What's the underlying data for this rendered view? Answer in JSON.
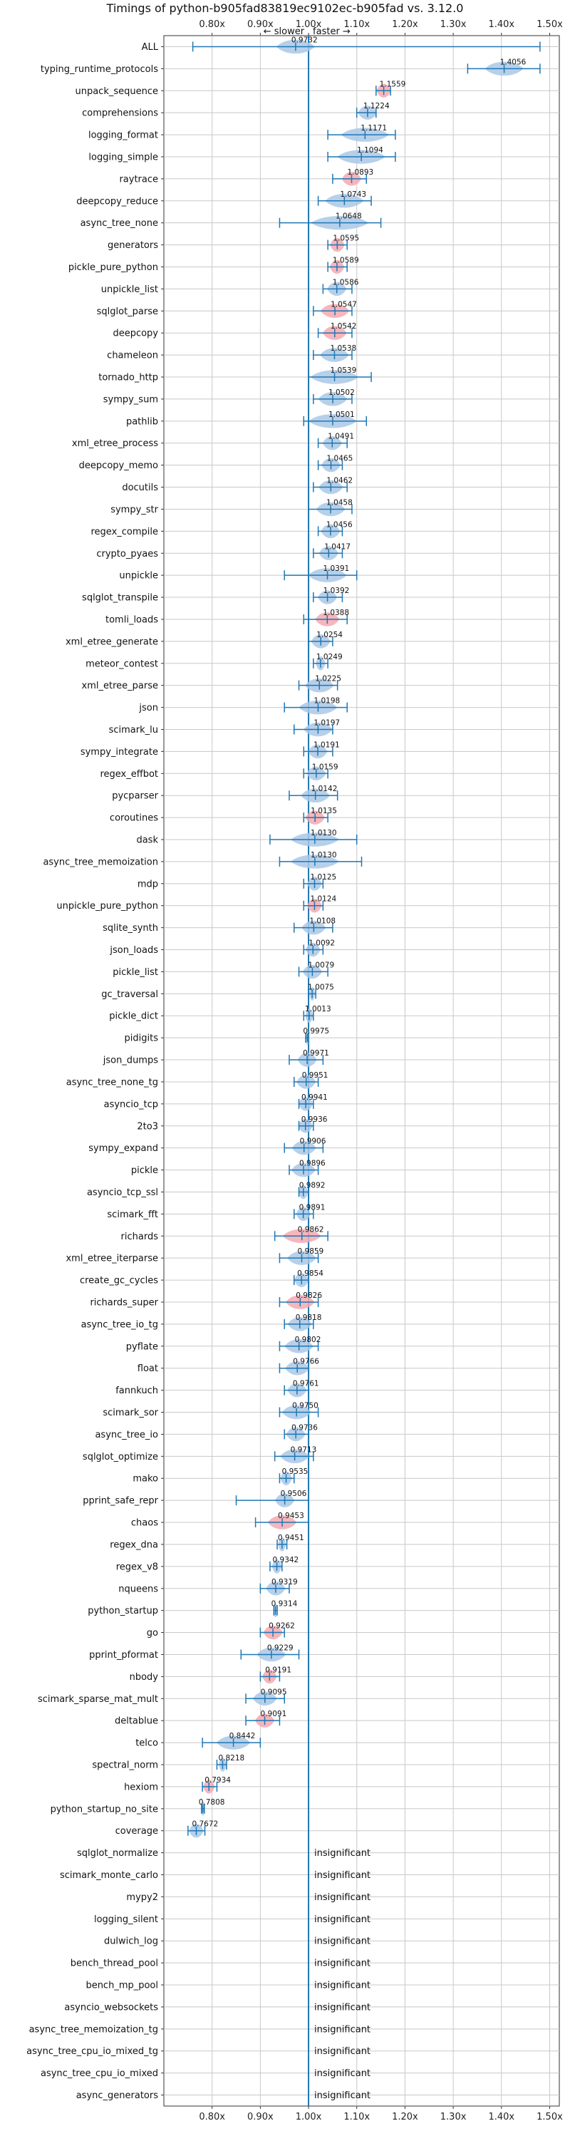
{
  "colors": {
    "faster": "#aac8e6",
    "slower": "#f4a9b0",
    "line": "#1f77b4",
    "grid": "#c8c8c8",
    "axis": "#333333"
  },
  "chart_data": {
    "type": "violin",
    "title": "Timings of python-b905fad83819ec9102ec-b905fad vs. 3.12.0",
    "direction_slower": "← slower",
    "direction_faster": "faster →",
    "xlim": [
      0.7,
      1.52
    ],
    "xticks": [
      0.8,
      0.9,
      1.0,
      1.1,
      1.2,
      1.3,
      1.4,
      1.5
    ],
    "xtick_labels": [
      "0.80x",
      "0.90x",
      "1.00x",
      "1.10x",
      "1.20x",
      "1.30x",
      "1.40x",
      "1.50x"
    ],
    "reference_line": 1.0,
    "grid": true,
    "insignificant_label": "insignificant",
    "benchmarks": [
      {
        "name": "ALL",
        "value": 0.9732,
        "lo": 0.76,
        "hi": 1.48,
        "spread": 0.04,
        "color": "faster",
        "show_value": true
      },
      {
        "name": "typing_runtime_protocols",
        "value": 1.4056,
        "lo": 1.33,
        "hi": 1.48,
        "spread": 0.04,
        "color": "faster"
      },
      {
        "name": "unpack_sequence",
        "value": 1.1559,
        "lo": 1.14,
        "hi": 1.17,
        "spread": 0.015,
        "color": "slower"
      },
      {
        "name": "comprehensions",
        "value": 1.1224,
        "lo": 1.1,
        "hi": 1.14,
        "spread": 0.02,
        "color": "faster"
      },
      {
        "name": "logging_format",
        "value": 1.1171,
        "lo": 1.04,
        "hi": 1.18,
        "spread": 0.05,
        "color": "faster"
      },
      {
        "name": "logging_simple",
        "value": 1.1094,
        "lo": 1.04,
        "hi": 1.18,
        "spread": 0.05,
        "color": "faster"
      },
      {
        "name": "raytrace",
        "value": 1.0893,
        "lo": 1.05,
        "hi": 1.12,
        "spread": 0.02,
        "color": "slower"
      },
      {
        "name": "deepcopy_reduce",
        "value": 1.0743,
        "lo": 1.02,
        "hi": 1.13,
        "spread": 0.04,
        "color": "faster"
      },
      {
        "name": "async_tree_none",
        "value": 1.0648,
        "lo": 0.94,
        "hi": 1.15,
        "spread": 0.06,
        "color": "faster"
      },
      {
        "name": "generators",
        "value": 1.0595,
        "lo": 1.04,
        "hi": 1.08,
        "spread": 0.015,
        "color": "slower"
      },
      {
        "name": "pickle_pure_python",
        "value": 1.0589,
        "lo": 1.04,
        "hi": 1.08,
        "spread": 0.015,
        "color": "slower"
      },
      {
        "name": "unpickle_list",
        "value": 1.0586,
        "lo": 1.03,
        "hi": 1.09,
        "spread": 0.02,
        "color": "faster"
      },
      {
        "name": "sqlglot_parse",
        "value": 1.0547,
        "lo": 1.01,
        "hi": 1.09,
        "spread": 0.03,
        "color": "slower"
      },
      {
        "name": "deepcopy",
        "value": 1.0542,
        "lo": 1.02,
        "hi": 1.09,
        "spread": 0.025,
        "color": "slower"
      },
      {
        "name": "chameleon",
        "value": 1.0538,
        "lo": 1.01,
        "hi": 1.09,
        "spread": 0.03,
        "color": "faster"
      },
      {
        "name": "tornado_http",
        "value": 1.0539,
        "lo": 1.0,
        "hi": 1.13,
        "spread": 0.05,
        "color": "faster"
      },
      {
        "name": "sympy_sum",
        "value": 1.0502,
        "lo": 1.01,
        "hi": 1.09,
        "spread": 0.03,
        "color": "faster"
      },
      {
        "name": "pathlib",
        "value": 1.0501,
        "lo": 0.99,
        "hi": 1.12,
        "spread": 0.05,
        "color": "faster"
      },
      {
        "name": "xml_etree_process",
        "value": 1.0491,
        "lo": 1.02,
        "hi": 1.08,
        "spread": 0.02,
        "color": "faster"
      },
      {
        "name": "deepcopy_memo",
        "value": 1.0465,
        "lo": 1.02,
        "hi": 1.07,
        "spread": 0.02,
        "color": "faster"
      },
      {
        "name": "docutils",
        "value": 1.0462,
        "lo": 1.01,
        "hi": 1.08,
        "spread": 0.025,
        "color": "faster"
      },
      {
        "name": "sympy_str",
        "value": 1.0458,
        "lo": 1.0,
        "hi": 1.09,
        "spread": 0.03,
        "color": "faster"
      },
      {
        "name": "regex_compile",
        "value": 1.0456,
        "lo": 1.02,
        "hi": 1.07,
        "spread": 0.02,
        "color": "faster"
      },
      {
        "name": "crypto_pyaes",
        "value": 1.0417,
        "lo": 1.01,
        "hi": 1.07,
        "spread": 0.02,
        "color": "faster"
      },
      {
        "name": "unpickle",
        "value": 1.0391,
        "lo": 0.95,
        "hi": 1.1,
        "spread": 0.04,
        "color": "faster"
      },
      {
        "name": "sqlglot_transpile",
        "value": 1.0392,
        "lo": 1.01,
        "hi": 1.07,
        "spread": 0.02,
        "color": "faster"
      },
      {
        "name": "tomli_loads",
        "value": 1.0388,
        "lo": 0.99,
        "hi": 1.08,
        "spread": 0.025,
        "color": "slower"
      },
      {
        "name": "xml_etree_generate",
        "value": 1.0254,
        "lo": 1.0,
        "hi": 1.05,
        "spread": 0.02,
        "color": "faster"
      },
      {
        "name": "meteor_contest",
        "value": 1.0249,
        "lo": 1.01,
        "hi": 1.04,
        "spread": 0.01,
        "color": "faster"
      },
      {
        "name": "xml_etree_parse",
        "value": 1.0225,
        "lo": 0.98,
        "hi": 1.06,
        "spread": 0.03,
        "color": "faster"
      },
      {
        "name": "json",
        "value": 1.0198,
        "lo": 0.95,
        "hi": 1.08,
        "spread": 0.04,
        "color": "faster"
      },
      {
        "name": "scimark_lu",
        "value": 1.0197,
        "lo": 0.97,
        "hi": 1.05,
        "spread": 0.03,
        "color": "faster"
      },
      {
        "name": "sympy_integrate",
        "value": 1.0191,
        "lo": 0.99,
        "hi": 1.05,
        "spread": 0.02,
        "color": "faster"
      },
      {
        "name": "regex_effbot",
        "value": 1.0159,
        "lo": 0.99,
        "hi": 1.04,
        "spread": 0.02,
        "color": "faster"
      },
      {
        "name": "pycparser",
        "value": 1.0142,
        "lo": 0.96,
        "hi": 1.06,
        "spread": 0.03,
        "color": "faster"
      },
      {
        "name": "coroutines",
        "value": 1.0135,
        "lo": 0.99,
        "hi": 1.04,
        "spread": 0.02,
        "color": "slower"
      },
      {
        "name": "dask",
        "value": 1.013,
        "lo": 0.92,
        "hi": 1.1,
        "spread": 0.05,
        "color": "faster"
      },
      {
        "name": "async_tree_memoization",
        "value": 1.013,
        "lo": 0.94,
        "hi": 1.11,
        "spread": 0.05,
        "color": "faster"
      },
      {
        "name": "mdp",
        "value": 1.0125,
        "lo": 0.99,
        "hi": 1.03,
        "spread": 0.015,
        "color": "faster"
      },
      {
        "name": "unpickle_pure_python",
        "value": 1.0124,
        "lo": 0.99,
        "hi": 1.03,
        "spread": 0.015,
        "color": "slower"
      },
      {
        "name": "sqlite_synth",
        "value": 1.0108,
        "lo": 0.97,
        "hi": 1.05,
        "spread": 0.025,
        "color": "faster"
      },
      {
        "name": "json_loads",
        "value": 1.0092,
        "lo": 0.99,
        "hi": 1.03,
        "spread": 0.015,
        "color": "faster"
      },
      {
        "name": "pickle_list",
        "value": 1.0079,
        "lo": 0.98,
        "hi": 1.04,
        "spread": 0.02,
        "color": "faster"
      },
      {
        "name": "gc_traversal",
        "value": 1.0075,
        "lo": 1.0,
        "hi": 1.015,
        "spread": 0.006,
        "color": "faster"
      },
      {
        "name": "pickle_dict",
        "value": 1.0013,
        "lo": 0.99,
        "hi": 1.01,
        "spread": 0.008,
        "color": "faster"
      },
      {
        "name": "pidigits",
        "value": 0.9975,
        "lo": 0.994,
        "hi": 1.0,
        "spread": 0.003,
        "color": "faster"
      },
      {
        "name": "json_dumps",
        "value": 0.9971,
        "lo": 0.96,
        "hi": 1.03,
        "spread": 0.02,
        "color": "faster"
      },
      {
        "name": "async_tree_none_tg",
        "value": 0.9951,
        "lo": 0.97,
        "hi": 1.02,
        "spread": 0.02,
        "color": "faster"
      },
      {
        "name": "asyncio_tcp",
        "value": 0.9941,
        "lo": 0.98,
        "hi": 1.01,
        "spread": 0.015,
        "color": "faster"
      },
      {
        "name": "2to3",
        "value": 0.9936,
        "lo": 0.98,
        "hi": 1.01,
        "spread": 0.015,
        "color": "faster"
      },
      {
        "name": "sympy_expand",
        "value": 0.9906,
        "lo": 0.95,
        "hi": 1.03,
        "spread": 0.025,
        "color": "faster"
      },
      {
        "name": "pickle",
        "value": 0.9896,
        "lo": 0.96,
        "hi": 1.02,
        "spread": 0.025,
        "color": "faster"
      },
      {
        "name": "asyncio_tcp_ssl",
        "value": 0.9892,
        "lo": 0.98,
        "hi": 1.0,
        "spread": 0.01,
        "color": "faster"
      },
      {
        "name": "scimark_fft",
        "value": 0.9891,
        "lo": 0.97,
        "hi": 1.01,
        "spread": 0.015,
        "color": "faster"
      },
      {
        "name": "richards",
        "value": 0.9862,
        "lo": 0.93,
        "hi": 1.04,
        "spread": 0.04,
        "color": "slower"
      },
      {
        "name": "xml_etree_iterparse",
        "value": 0.9859,
        "lo": 0.94,
        "hi": 1.02,
        "spread": 0.03,
        "color": "faster"
      },
      {
        "name": "create_gc_cycles",
        "value": 0.9854,
        "lo": 0.97,
        "hi": 1.0,
        "spread": 0.015,
        "color": "faster"
      },
      {
        "name": "richards_super",
        "value": 0.9826,
        "lo": 0.94,
        "hi": 1.02,
        "spread": 0.03,
        "color": "slower"
      },
      {
        "name": "async_tree_io_tg",
        "value": 0.9818,
        "lo": 0.95,
        "hi": 1.01,
        "spread": 0.025,
        "color": "faster"
      },
      {
        "name": "pyflate",
        "value": 0.9802,
        "lo": 0.94,
        "hi": 1.02,
        "spread": 0.03,
        "color": "faster"
      },
      {
        "name": "float",
        "value": 0.9766,
        "lo": 0.94,
        "hi": 1.0,
        "spread": 0.025,
        "color": "faster"
      },
      {
        "name": "fannkuch",
        "value": 0.9761,
        "lo": 0.95,
        "hi": 1.0,
        "spread": 0.02,
        "color": "faster"
      },
      {
        "name": "scimark_sor",
        "value": 0.975,
        "lo": 0.94,
        "hi": 1.02,
        "spread": 0.03,
        "color": "faster"
      },
      {
        "name": "async_tree_io",
        "value": 0.9736,
        "lo": 0.95,
        "hi": 1.0,
        "spread": 0.02,
        "color": "faster"
      },
      {
        "name": "sqlglot_optimize",
        "value": 0.9713,
        "lo": 0.93,
        "hi": 1.01,
        "spread": 0.03,
        "color": "faster"
      },
      {
        "name": "mako",
        "value": 0.9535,
        "lo": 0.94,
        "hi": 0.97,
        "spread": 0.012,
        "color": "faster"
      },
      {
        "name": "pprint_safe_repr",
        "value": 0.9506,
        "lo": 0.85,
        "hi": 1.0,
        "spread": 0.02,
        "color": "faster"
      },
      {
        "name": "chaos",
        "value": 0.9453,
        "lo": 0.89,
        "hi": 1.0,
        "spread": 0.03,
        "color": "slower"
      },
      {
        "name": "regex_dna",
        "value": 0.9451,
        "lo": 0.935,
        "hi": 0.955,
        "spread": 0.008,
        "color": "faster"
      },
      {
        "name": "regex_v8",
        "value": 0.9342,
        "lo": 0.92,
        "hi": 0.945,
        "spread": 0.01,
        "color": "faster"
      },
      {
        "name": "nqueens",
        "value": 0.9319,
        "lo": 0.9,
        "hi": 0.96,
        "spread": 0.02,
        "color": "faster"
      },
      {
        "name": "python_startup",
        "value": 0.9314,
        "lo": 0.928,
        "hi": 0.935,
        "spread": 0.003,
        "color": "faster"
      },
      {
        "name": "go",
        "value": 0.9262,
        "lo": 0.9,
        "hi": 0.95,
        "spread": 0.02,
        "color": "slower"
      },
      {
        "name": "pprint_pformat",
        "value": 0.9229,
        "lo": 0.86,
        "hi": 0.98,
        "spread": 0.03,
        "color": "faster"
      },
      {
        "name": "nbody",
        "value": 0.9191,
        "lo": 0.9,
        "hi": 0.94,
        "spread": 0.015,
        "color": "slower"
      },
      {
        "name": "scimark_sparse_mat_mult",
        "value": 0.9095,
        "lo": 0.87,
        "hi": 0.95,
        "spread": 0.025,
        "color": "faster"
      },
      {
        "name": "deltablue",
        "value": 0.9091,
        "lo": 0.87,
        "hi": 0.94,
        "spread": 0.02,
        "color": "slower"
      },
      {
        "name": "telco",
        "value": 0.8442,
        "lo": 0.78,
        "hi": 0.9,
        "spread": 0.035,
        "color": "faster"
      },
      {
        "name": "spectral_norm",
        "value": 0.8218,
        "lo": 0.81,
        "hi": 0.83,
        "spread": 0.008,
        "color": "faster"
      },
      {
        "name": "hexiom",
        "value": 0.7934,
        "lo": 0.78,
        "hi": 0.81,
        "spread": 0.012,
        "color": "slower"
      },
      {
        "name": "python_startup_no_site",
        "value": 0.7808,
        "lo": 0.778,
        "hi": 0.784,
        "spread": 0.003,
        "color": "faster"
      },
      {
        "name": "coverage",
        "value": 0.7672,
        "lo": 0.75,
        "hi": 0.785,
        "spread": 0.015,
        "color": "faster"
      },
      {
        "name": "sqlglot_normalize",
        "insignificant": true
      },
      {
        "name": "scimark_monte_carlo",
        "insignificant": true
      },
      {
        "name": "mypy2",
        "insignificant": true
      },
      {
        "name": "logging_silent",
        "insignificant": true
      },
      {
        "name": "dulwich_log",
        "insignificant": true
      },
      {
        "name": "bench_thread_pool",
        "insignificant": true
      },
      {
        "name": "bench_mp_pool",
        "insignificant": true
      },
      {
        "name": "asyncio_websockets",
        "insignificant": true
      },
      {
        "name": "async_tree_memoization_tg",
        "insignificant": true
      },
      {
        "name": "async_tree_cpu_io_mixed_tg",
        "insignificant": true
      },
      {
        "name": "async_tree_cpu_io_mixed",
        "insignificant": true
      },
      {
        "name": "async_generators",
        "insignificant": true
      }
    ]
  }
}
